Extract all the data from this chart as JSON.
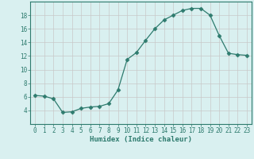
{
  "x": [
    0,
    1,
    2,
    3,
    4,
    5,
    6,
    7,
    8,
    9,
    10,
    11,
    12,
    13,
    14,
    15,
    16,
    17,
    18,
    19,
    20,
    21,
    22,
    23
  ],
  "y": [
    6.2,
    6.1,
    5.7,
    3.7,
    3.8,
    4.3,
    4.5,
    4.6,
    5.0,
    7.0,
    11.5,
    12.5,
    14.3,
    16.0,
    17.3,
    18.0,
    18.7,
    19.0,
    19.0,
    18.0,
    15.0,
    12.4,
    12.2,
    12.1
  ],
  "line_color": "#2e7b6e",
  "marker": "D",
  "marker_size": 2.5,
  "bg_color": "#d9f0f0",
  "grid_color": "#c8c8c8",
  "xlabel": "Humidex (Indice chaleur)",
  "ylim": [
    2,
    20
  ],
  "xlim": [
    -0.5,
    23.5
  ],
  "yticks": [
    4,
    6,
    8,
    10,
    12,
    14,
    16,
    18
  ],
  "xticks": [
    0,
    1,
    2,
    3,
    4,
    5,
    6,
    7,
    8,
    9,
    10,
    11,
    12,
    13,
    14,
    15,
    16,
    17,
    18,
    19,
    20,
    21,
    22,
    23
  ],
  "tick_fontsize": 5.5,
  "xlabel_fontsize": 6.5
}
